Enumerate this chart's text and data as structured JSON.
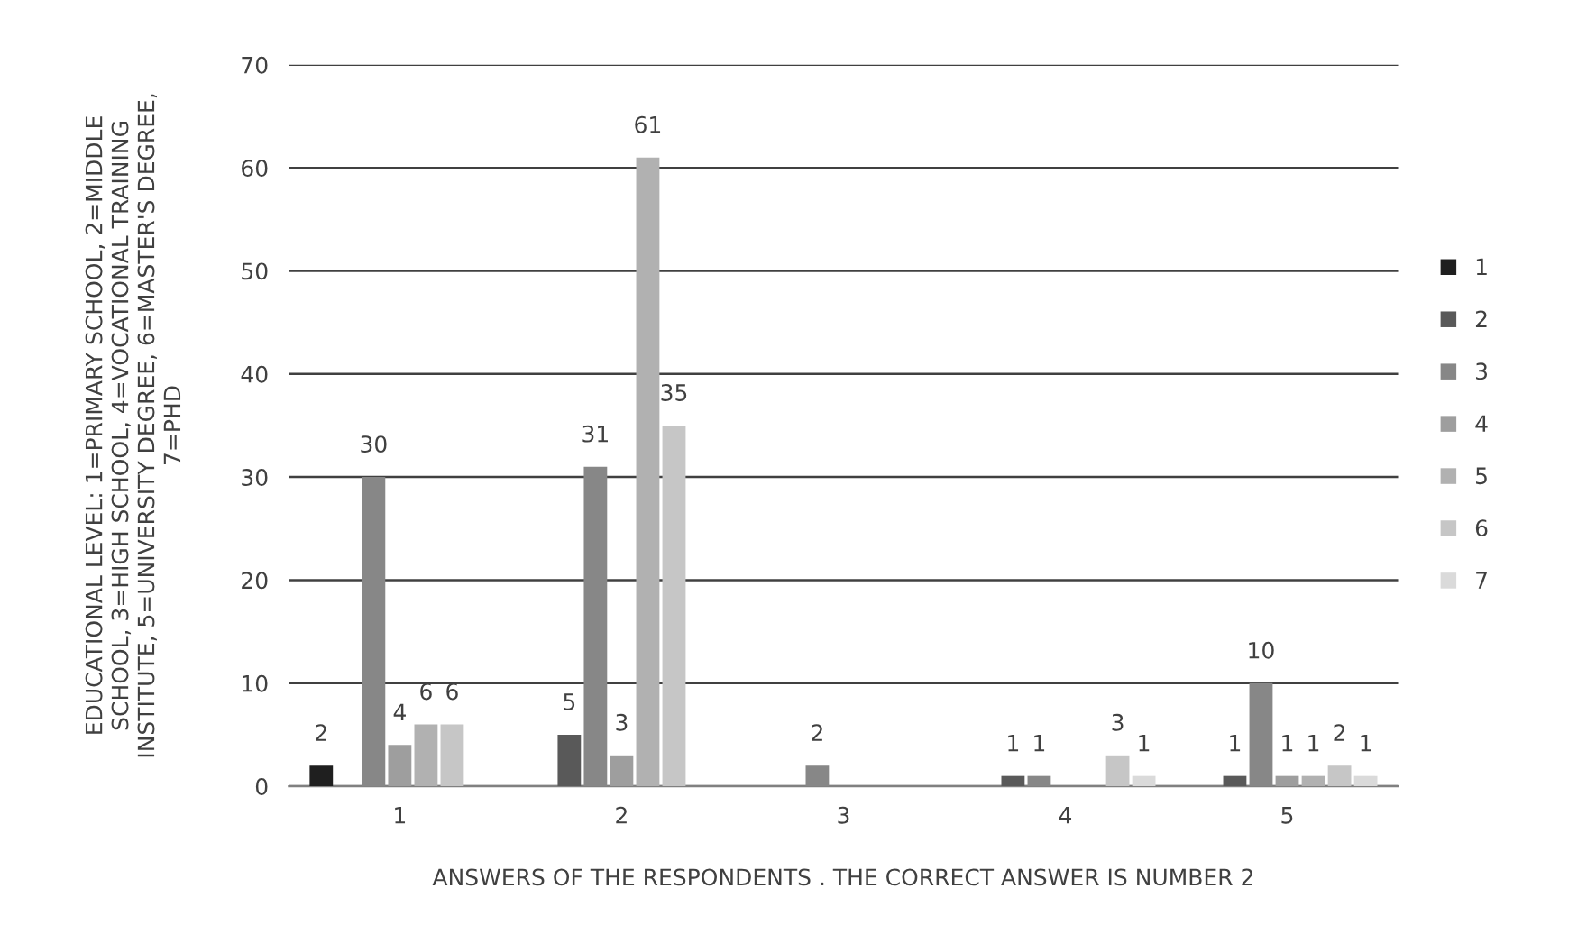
{
  "chart_data": {
    "type": "bar",
    "xlabel": "ANSWERS OF THE RESPONDENTS . THE CORRECT ANSWER IS NUMBER 2",
    "ylabel": "EDUCATIONAL LEVEL: 1=PRIMARY SCHOOL, 2=MIDDLE\nSCHOOL, 3=HIGH SCHOOL, 4=VOCATIONAL TRAINING\nINSTITUTE, 5=UNIVERSITY DEGREE, 6=MASTER'S DEGREE,\n7=PHD",
    "categories": [
      "1",
      "2",
      "3",
      "4",
      "5"
    ],
    "series": [
      {
        "name": "1",
        "color": "#1f1f1f",
        "values": [
          2,
          null,
          null,
          null,
          null
        ]
      },
      {
        "name": "2",
        "color": "#595959",
        "values": [
          null,
          5,
          null,
          1,
          1
        ]
      },
      {
        "name": "3",
        "color": "#878787",
        "values": [
          30,
          31,
          2,
          1,
          10
        ]
      },
      {
        "name": "4",
        "color": "#9e9e9e",
        "values": [
          4,
          3,
          null,
          null,
          1
        ]
      },
      {
        "name": "5",
        "color": "#b1b1b1",
        "values": [
          6,
          61,
          null,
          null,
          1
        ]
      },
      {
        "name": "6",
        "color": "#c6c6c6",
        "values": [
          6,
          35,
          null,
          3,
          2
        ]
      },
      {
        "name": "7",
        "color": "#dadada",
        "values": [
          null,
          null,
          null,
          1,
          1
        ]
      }
    ],
    "ylim": [
      0,
      70
    ],
    "yticks": [
      0,
      10,
      20,
      30,
      40,
      50,
      60,
      70
    ],
    "grid": "y",
    "legend": "right",
    "data_labels": true
  }
}
